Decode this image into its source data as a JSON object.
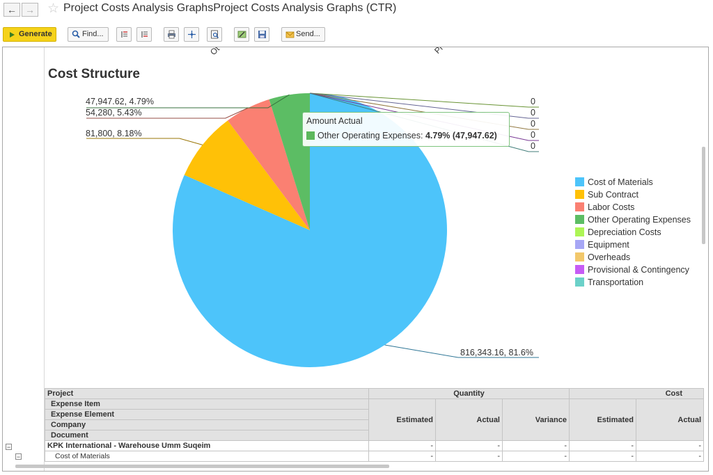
{
  "window": {
    "title": "Project Costs Analysis GraphsProject Costs Analysis Graphs (CTR)",
    "back_glyph": "←",
    "forward_glyph": "→",
    "star_glyph": "☆"
  },
  "toolbar": {
    "generate_label": "Generate",
    "find_label": "Find...",
    "send_label": "Send..."
  },
  "chart_header": {
    "rotated_labels": [
      "Ot",
      "Pr"
    ]
  },
  "chart_data": {
    "type": "pie",
    "title": "Cost Structure",
    "series_name": "Amount Actual",
    "slices": [
      {
        "name": "Cost of Materials",
        "value": 816343.16,
        "percent": 81.6,
        "label": "816,343.16, 81.6%",
        "color": "#4dc4fa"
      },
      {
        "name": "Sub Contract",
        "value": 81800,
        "percent": 8.18,
        "label": "81,800, 8.18%",
        "color": "#ffc107"
      },
      {
        "name": "Labor Costs",
        "value": 54280,
        "percent": 5.43,
        "label": "54,280, 5.43%",
        "color": "#fa8072"
      },
      {
        "name": "Other Operating Expenses",
        "value": 47947.62,
        "percent": 4.79,
        "label": "47,947.62, 4.79%",
        "color": "#5cbd64"
      },
      {
        "name": "Depreciation Costs",
        "value": 0,
        "percent": 0,
        "label": "0",
        "color": "#adf555"
      },
      {
        "name": "Equipment",
        "value": 0,
        "percent": 0,
        "label": "0",
        "color": "#a6a6f5"
      },
      {
        "name": "Overheads",
        "value": 0,
        "percent": 0,
        "label": "0",
        "color": "#f2c86b"
      },
      {
        "name": "Provisional & Contingency",
        "value": 0,
        "percent": 0,
        "label": "0",
        "color": "#c65cf5"
      },
      {
        "name": "Transportation",
        "value": 0,
        "percent": 0,
        "label": "0",
        "color": "#6bd1c9"
      }
    ],
    "legend_position": "right"
  },
  "tooltip": {
    "title": "Amount Actual",
    "name": "Other Operating Expenses: ",
    "value": "4.79% (47,947.62)"
  },
  "grid": {
    "row_headers": [
      "Project",
      "Expense Item",
      "Expense Element",
      "Company",
      "Document"
    ],
    "group_quantity": "Quantity",
    "group_cost": "Cost",
    "columns": [
      "Estimated",
      "Actual",
      "Variance",
      "Estimated",
      "Actual"
    ],
    "rows": [
      {
        "label": "KPK International - Warehouse Umm Suqeim",
        "values": [
          "-",
          "-",
          "-",
          "-",
          "-"
        ]
      },
      {
        "label": "Cost of Materials",
        "values": [
          "-",
          "-",
          "-",
          "-",
          "-"
        ]
      }
    ]
  }
}
